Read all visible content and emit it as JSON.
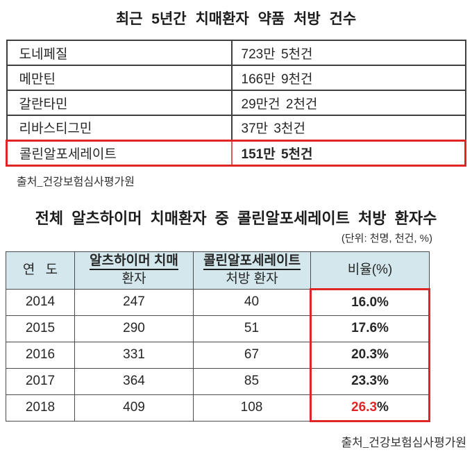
{
  "colors": {
    "accent_red": "#e02525",
    "table2_header_bg": "#d3e7ec",
    "border_dark": "#3f3f3f",
    "text": "#262626"
  },
  "table1": {
    "title": "최근 5년간 치매환자 약품 처방 건수",
    "rows": [
      {
        "drug": "도네페질",
        "count": "723만 5천건"
      },
      {
        "drug": "메만틴",
        "count": "166만 9천건"
      },
      {
        "drug": "갈란타민",
        "count": "29만건 2천건"
      },
      {
        "drug": "리바스티그민",
        "count": "37만 3천건"
      },
      {
        "drug": "콜린알포세레이트",
        "count": "151만 5천건"
      }
    ],
    "highlighted_row": "콜린알포세레이트",
    "source": "출처_건강보험심사평가원"
  },
  "table2": {
    "title": "전체 알츠하이머 치매환자 중 콜린알포세레이트 처방 환자수",
    "unit_note": "(단위: 천명, 천건, %)",
    "headers": {
      "year": "연 도",
      "col2_line1": "알츠하이머 치매",
      "col2_line2": "환자",
      "col3_line1": "콜린알포세레이트",
      "col3_line2": "처방 환자",
      "ratio": "비율(%)"
    },
    "rows": [
      {
        "year": "2014",
        "patients": "247",
        "prescribed": "40",
        "ratio": "16.0%"
      },
      {
        "year": "2015",
        "patients": "290",
        "prescribed": "51",
        "ratio": "17.6%"
      },
      {
        "year": "2016",
        "patients": "331",
        "prescribed": "67",
        "ratio": "20.3%"
      },
      {
        "year": "2017",
        "patients": "364",
        "prescribed": "85",
        "ratio": "23.3%"
      },
      {
        "year": "2018",
        "patients": "409",
        "prescribed": "108",
        "ratio": "26.3%",
        "ratio_number": "26.3",
        "ratio_suffix": "%",
        "ratio_number_color": "#e02525"
      }
    ],
    "highlighted_column": "비율(%)",
    "source": "출처_건강보험심사평가원"
  },
  "chart_data": [
    {
      "type": "table",
      "title": "최근 5년간 치매환자 약품 처방 건수",
      "rows": [
        [
          "도네페질",
          "723만 5천건"
        ],
        [
          "메만틴",
          "166만 9천건"
        ],
        [
          "갈란타민",
          "29만건 2천건"
        ],
        [
          "리바스티그민",
          "37만 3천건"
        ],
        [
          "콜린알포세레이트",
          "151만 5천건"
        ]
      ],
      "highlight": "콜린알포세레이트 row outlined in red, value bold",
      "source": "출처_건강보험심사평가원"
    },
    {
      "type": "table",
      "title": "전체 알츠하이머 치매환자 중 콜린알포세레이트 처방 환자수",
      "unit": "(단위: 천명, 천건, %)",
      "columns": [
        "연 도",
        "알츠하이머 치매 환자",
        "콜린알포세레이트 처방 환자",
        "비율(%)"
      ],
      "rows": [
        [
          "2014",
          247,
          40,
          "16.0%"
        ],
        [
          "2015",
          290,
          51,
          "17.6%"
        ],
        [
          "2016",
          331,
          67,
          "20.3%"
        ],
        [
          "2017",
          364,
          85,
          "23.3%"
        ],
        [
          "2018",
          409,
          108,
          "26.3%"
        ]
      ],
      "highlight": "비율(%) data column outlined in red; 2018 value 26.3 shown in red",
      "source": "출처_건강보험심사평가원"
    }
  ]
}
